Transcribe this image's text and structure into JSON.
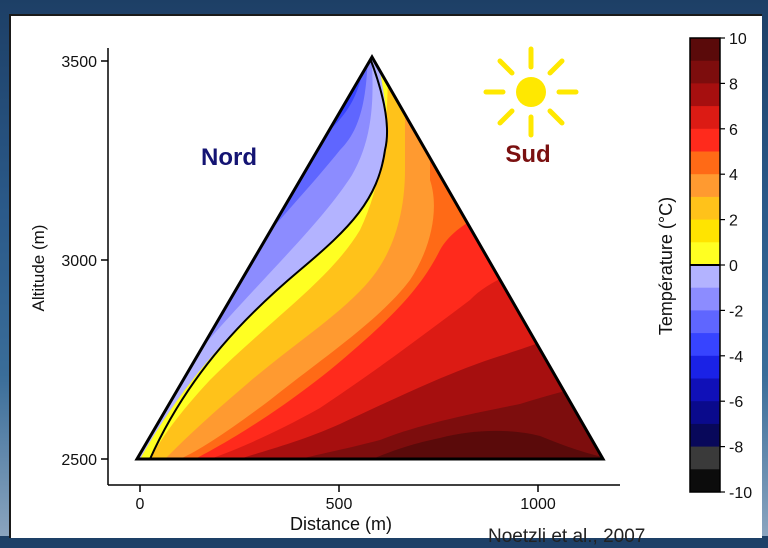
{
  "chart_data": {
    "type": "heatmap",
    "xlabel": "Distance (m)",
    "ylabel": "Altitude (m)",
    "x_ticks": [
      0,
      500,
      1000
    ],
    "y_ticks": [
      2500,
      3000,
      3500
    ],
    "xlim": [
      0,
      1175
    ],
    "ylim": [
      2500,
      3500
    ],
    "annotations": {
      "north": "Nord",
      "south": "Sud"
    },
    "colorbar": {
      "label": "Température (°C)",
      "ticks": [
        10,
        8,
        6,
        4,
        2,
        0,
        -2,
        -4,
        -6,
        -8,
        -10
      ],
      "levels": [
        {
          "from": 9,
          "to": 10,
          "color": "#5a0a0a"
        },
        {
          "from": 8,
          "to": 9,
          "color": "#7d0d0d"
        },
        {
          "from": 7,
          "to": 8,
          "color": "#a60f0f"
        },
        {
          "from": 6,
          "to": 7,
          "color": "#dc1b14"
        },
        {
          "from": 5,
          "to": 6,
          "color": "#ff2a1c"
        },
        {
          "from": 4,
          "to": 5,
          "color": "#ff6a16"
        },
        {
          "from": 3,
          "to": 4,
          "color": "#ff9a30"
        },
        {
          "from": 2,
          "to": 3,
          "color": "#ffc21a"
        },
        {
          "from": 1,
          "to": 2,
          "color": "#ffe400"
        },
        {
          "from": 0,
          "to": 1,
          "color": "#ffff22"
        },
        {
          "from": -1,
          "to": 0,
          "color": "#b3b3ff"
        },
        {
          "from": -2,
          "to": -1,
          "color": "#8c8cff"
        },
        {
          "from": -3,
          "to": -2,
          "color": "#5f66ff"
        },
        {
          "from": -4,
          "to": -3,
          "color": "#3744ff"
        },
        {
          "from": -5,
          "to": -4,
          "color": "#1a22e6"
        },
        {
          "from": -6,
          "to": -5,
          "color": "#1010b8"
        },
        {
          "from": -7,
          "to": -6,
          "color": "#0a0a8c"
        },
        {
          "from": -8,
          "to": -7,
          "color": "#08085a"
        },
        {
          "from": -9,
          "to": -8,
          "color": "#3a3a3a"
        },
        {
          "from": -10,
          "to": -9,
          "color": "#0c0c0c"
        }
      ]
    },
    "colors": {
      "nord": "#141473",
      "sud": "#7a1010",
      "sun": "#ffe800"
    }
  },
  "credit": "Noetzli et al., 2007"
}
